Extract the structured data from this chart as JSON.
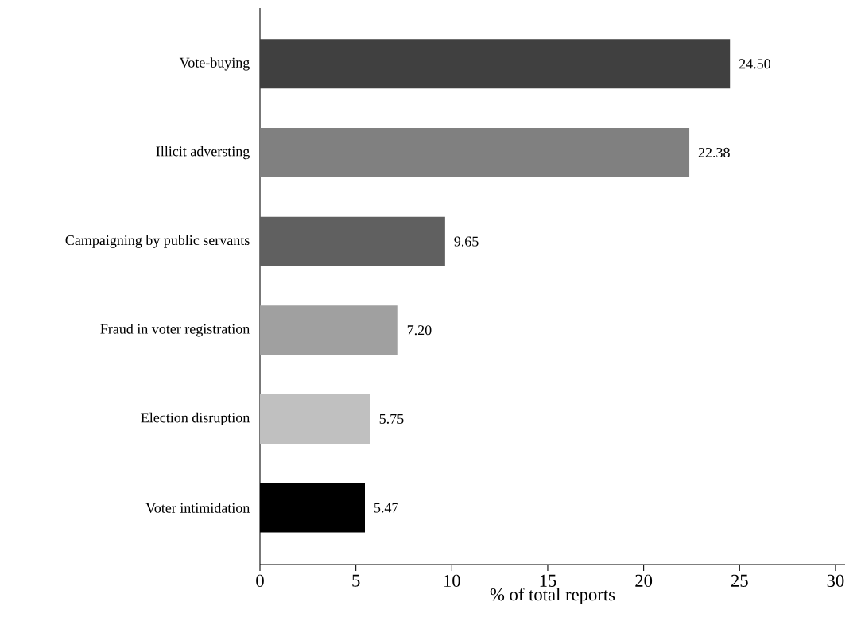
{
  "chart_data": {
    "type": "bar",
    "orientation": "horizontal",
    "xlabel": "% of total reports",
    "categories": [
      "Vote-buying",
      "Illicit adversting",
      "Campaigning by public servants",
      "Fraud in voter registration",
      "Election disruption",
      "Voter intimidation"
    ],
    "values": [
      24.5,
      22.38,
      9.65,
      7.2,
      5.75,
      5.47
    ],
    "value_labels": [
      "24.50",
      "22.38",
      "9.65",
      "7.20",
      "5.75",
      "5.47"
    ],
    "colors": [
      "#404040",
      "#808080",
      "#606060",
      "#a0a0a0",
      "#c0c0c0",
      "#000000"
    ],
    "xlim": [
      0,
      30.5
    ],
    "xticks": [
      0,
      5,
      10,
      15,
      20,
      25,
      30
    ]
  }
}
